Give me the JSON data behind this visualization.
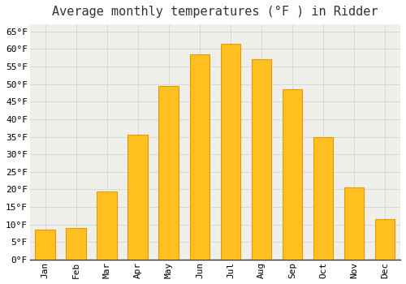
{
  "title": "Average monthly temperatures (°F ) in Ridder",
  "months": [
    "Jan",
    "Feb",
    "Mar",
    "Apr",
    "May",
    "Jun",
    "Jul",
    "Aug",
    "Sep",
    "Oct",
    "Nov",
    "Dec"
  ],
  "values": [
    8.5,
    9.0,
    19.5,
    35.5,
    49.5,
    58.5,
    61.5,
    57.0,
    48.5,
    35.0,
    20.5,
    11.5
  ],
  "bar_color": "#FFC020",
  "bar_edge_color": "#E8960A",
  "plot_bg_color": "#F0F0EB",
  "figure_bg_color": "#FFFFFF",
  "grid_color": "#D8D8D8",
  "ylim": [
    0,
    67
  ],
  "yticks": [
    0,
    5,
    10,
    15,
    20,
    25,
    30,
    35,
    40,
    45,
    50,
    55,
    60,
    65
  ],
  "title_fontsize": 11,
  "tick_fontsize": 8,
  "font_family": "monospace"
}
